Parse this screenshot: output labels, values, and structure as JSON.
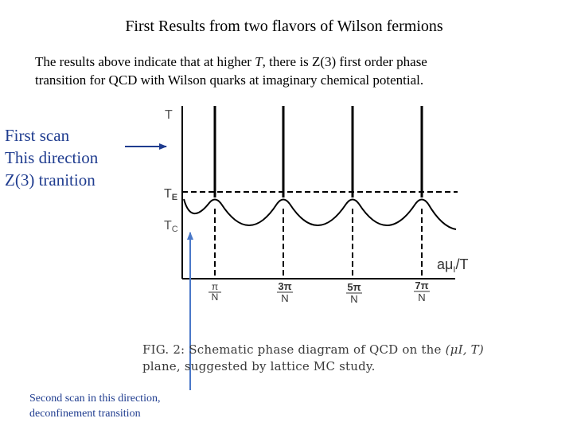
{
  "title": "First Results from two flavors of Wilson fermions",
  "intro": {
    "line1_a": "The results above indicate that at higher ",
    "line1_var": "T",
    "line1_b": ", there is Z(3) first order phase",
    "line2": "transition for QCD with Wilson quarks at imaginary chemical potential."
  },
  "first_scan": {
    "line1": "First scan",
    "line2": "This direction",
    "line3": "Z(3) tranition"
  },
  "second_scan": {
    "line1": "Second scan  in this direction,",
    "line2": "deconfinement transition"
  },
  "diagram": {
    "axis_t_label": "T",
    "te_label": "TE",
    "tc_label": "TC",
    "x_axis_label": "aμI/T",
    "ticks": [
      {
        "num": "π",
        "den": "N"
      },
      {
        "num": "3π",
        "den": "N"
      },
      {
        "num": "5π",
        "den": "N"
      },
      {
        "num": "7π",
        "den": "N"
      }
    ]
  },
  "caption": {
    "prefix": "FIG. 2:  Schematic phase diagram of QCD on the ",
    "var": "(μI, T)",
    "line2": "plane, suggested by lattice MC study."
  },
  "colors": {
    "arrow": "#1f3c8f",
    "second_arrow": "#4a78c8",
    "annotation_text": "#1f3c8f"
  }
}
